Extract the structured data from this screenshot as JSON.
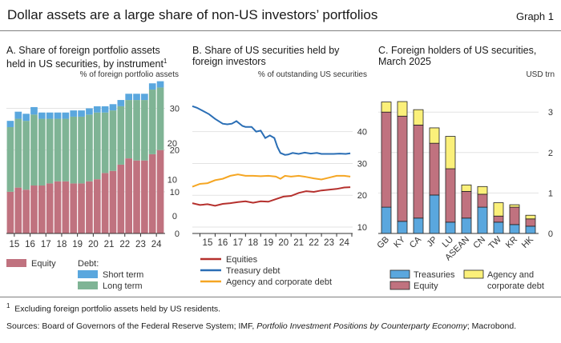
{
  "header": {
    "title": "Dollar assets are a large share of non-US investors’ portfolios",
    "graph_label": "Graph 1"
  },
  "panels": {
    "a": {
      "title_line1": "A. Share of foreign portfolio assets",
      "title_line2": "held in US securities, by instrument",
      "footnote_mark": "1"
    },
    "b": {
      "title_line1": "B. Share of US securities held by",
      "title_line2": "foreign investors"
    },
    "c": {
      "title_line1": "C. Foreign holders of US securities,",
      "title_line2": "March 2025"
    }
  },
  "footer": {
    "footnote_mark": "1",
    "footnote": "Excluding foreign portfolio assets held by US residents.",
    "sources_prefix": "Sources: Board of Governors of the Federal Reserve System; IMF, ",
    "sources_italic": "Portfolio Investment Positions by Counterparty Economy",
    "sources_suffix": "; Macrobond."
  },
  "colors": {
    "equity": "#c0727f",
    "short_term": "#5aa7de",
    "long_term": "#7fb495",
    "treasury": "#2a6eb5",
    "agency": "#f5a623",
    "equities_line": "#b5302d",
    "yellow": "#fbf07a",
    "grid": "#e3e3e3"
  },
  "chart_data": [
    {
      "type": "bar",
      "stacked": true,
      "unit": "% of foreign portfolio assets",
      "x_tick_labels": [
        "15",
        "16",
        "17",
        "18",
        "19",
        "20",
        "21",
        "22",
        "23",
        "24"
      ],
      "y_ticks": [
        0,
        10,
        20,
        30
      ],
      "ylim": [
        0,
        37
      ],
      "legend_equity": "Equity",
      "legend_debt_heading": "Debt:",
      "series": [
        {
          "name": "Equity",
          "values": [
            10,
            11,
            10.5,
            11.5,
            11.5,
            12,
            12.5,
            12.5,
            12,
            12,
            12.5,
            13,
            14.5,
            15,
            16.5,
            18,
            17.5,
            17.5,
            19,
            20
          ]
        },
        {
          "name": "Long term",
          "values": [
            15.5,
            16.5,
            16.5,
            17,
            16,
            15.5,
            15,
            15,
            16,
            16,
            16,
            16,
            14.5,
            14.5,
            14,
            14,
            14.5,
            14.5,
            15.5,
            15
          ]
        },
        {
          "name": "Short term",
          "values": [
            1.5,
            1.7,
            1.7,
            1.8,
            1.5,
            1.5,
            1.5,
            1.5,
            1.5,
            1.5,
            1.5,
            1.5,
            1.5,
            1.5,
            1.5,
            1.5,
            1.5,
            1.5,
            1.5,
            1.5
          ]
        }
      ]
    },
    {
      "type": "line",
      "unit": "% of outstanding US securities",
      "x_range": [
        2014.5,
        2025
      ],
      "x_tick_labels": [
        "15",
        "16",
        "17",
        "18",
        "19",
        "20",
        "21",
        "22",
        "23",
        "24"
      ],
      "y_left_ticks": [
        0,
        10,
        20
      ],
      "y_right_ticks": [
        10,
        20,
        30,
        40
      ],
      "series": [
        {
          "name": "Equities",
          "axis": "left",
          "x": [
            2014.5,
            2015,
            2015.5,
            2016,
            2016.5,
            2017,
            2017.5,
            2018,
            2018.5,
            2019,
            2019.5,
            2020,
            2020.5,
            2021,
            2021.5,
            2022,
            2022.5,
            2023,
            2023.5,
            2024,
            2024.5,
            2024.9
          ],
          "y": [
            3.5,
            3,
            3.2,
            2.8,
            3.3,
            3.5,
            3.8,
            4,
            3.6,
            4,
            3.9,
            4.6,
            5.3,
            5.5,
            6.3,
            6.8,
            6.6,
            7,
            7.2,
            7.4,
            7.8,
            7.9
          ]
        },
        {
          "name": "Treasury debt",
          "axis": "right",
          "x": [
            2014.5,
            2014.8,
            2015.2,
            2015.6,
            2016,
            2016.5,
            2016.8,
            2017.1,
            2017.4,
            2017.8,
            2018,
            2018.4,
            2018.7,
            2019,
            2019.3,
            2019.6,
            2019.9,
            2020.1,
            2020.3,
            2020.6,
            2020.8,
            2021.1,
            2021.5,
            2021.9,
            2022.3,
            2022.7,
            2023,
            2023.4,
            2023.8,
            2024.2,
            2024.6,
            2024.9
          ],
          "y": [
            48,
            47.5,
            46.5,
            45.5,
            44,
            42.5,
            42.3,
            42.5,
            43.3,
            41.8,
            41.5,
            41.5,
            40,
            40.3,
            38,
            38.8,
            38,
            35.2,
            33.3,
            32.7,
            32.8,
            33.3,
            33,
            33.4,
            33.1,
            33.3,
            33,
            33,
            33,
            33.1,
            33,
            33.2
          ]
        },
        {
          "name": "Agency and corporate debt",
          "axis": "left",
          "x": [
            2014.5,
            2015,
            2015.5,
            2016,
            2016.5,
            2017,
            2017.5,
            2018,
            2018.5,
            2019,
            2019.5,
            2020,
            2020.3,
            2020.6,
            2021,
            2021.5,
            2022,
            2022.5,
            2023,
            2023.5,
            2024,
            2024.5,
            2024.9
          ],
          "y": [
            8,
            8.8,
            9,
            9.8,
            10.2,
            11,
            11.4,
            11,
            11,
            10.9,
            11,
            10.8,
            10.2,
            11,
            10.8,
            11,
            10.7,
            10.3,
            10,
            10.5,
            11,
            11,
            10.8
          ]
        }
      ]
    },
    {
      "type": "bar",
      "stacked": true,
      "unit": "USD trn",
      "categories": [
        "GB",
        "KY",
        "CA",
        "JP",
        "LU",
        "ASEAN",
        "CN",
        "TW",
        "KR",
        "HK"
      ],
      "y_ticks": [
        0,
        1,
        2,
        3
      ],
      "ylim": [
        0,
        3.3
      ],
      "series": [
        {
          "name": "Treasuries",
          "values": [
            0.65,
            0.3,
            0.38,
            0.95,
            0.28,
            0.38,
            0.65,
            0.28,
            0.22,
            0.18
          ]
        },
        {
          "name": "Equity",
          "values": [
            2.35,
            2.6,
            2.3,
            1.28,
            1.32,
            0.66,
            0.32,
            0.15,
            0.43,
            0.18
          ]
        },
        {
          "name": "Agency and corporate debt",
          "values": [
            0.25,
            0.36,
            0.38,
            0.38,
            0.8,
            0.16,
            0.19,
            0.33,
            0.06,
            0.09
          ]
        }
      ]
    }
  ]
}
